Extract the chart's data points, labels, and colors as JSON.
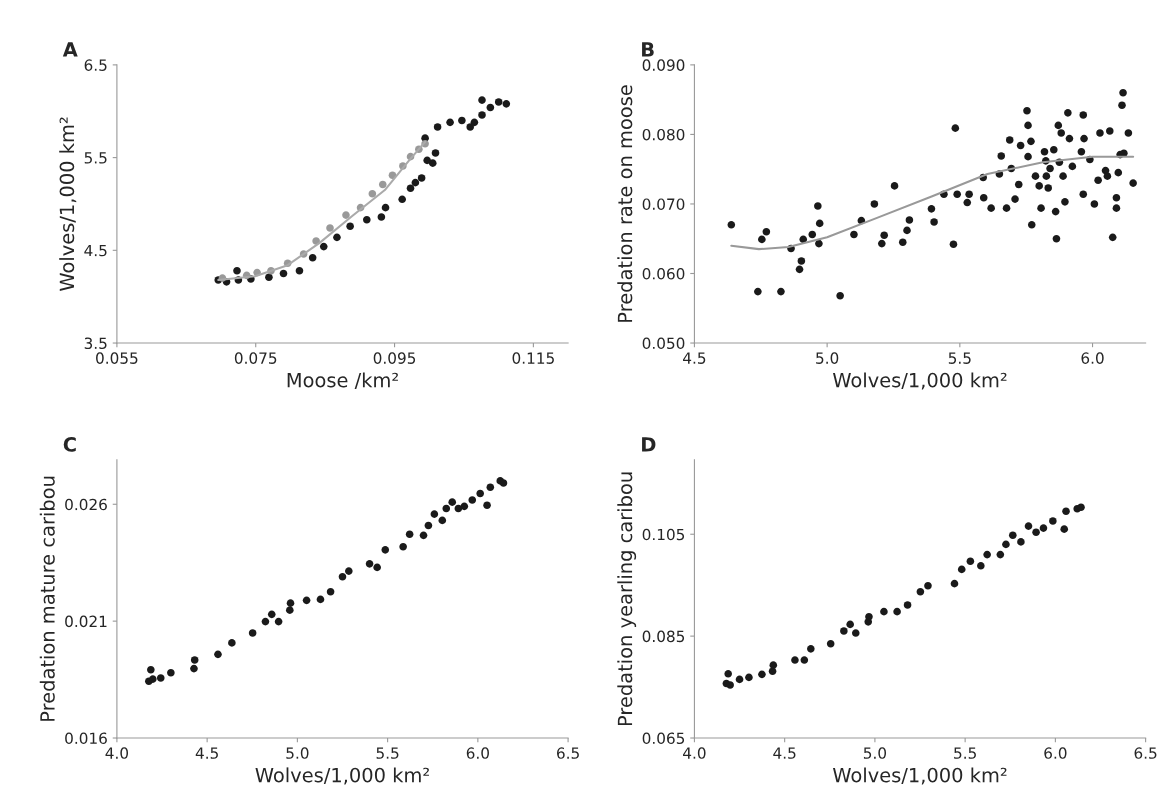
{
  "chart_data": [
    {
      "type": "scatter",
      "title": "A",
      "xlabel": "Moose /km²",
      "ylabel": "Wolves/1,000 km²",
      "xlim": [
        0.055,
        0.12
      ],
      "ylim": [
        3.5,
        6.5
      ],
      "xticks": [
        0.055,
        0.075,
        0.095,
        0.115
      ],
      "yticks": [
        3.5,
        4.5,
        5.5,
        6.5
      ],
      "grid": false,
      "marker": "circle",
      "series": [
        {
          "color": "#1a1a1a",
          "x": [
            0.0696,
            0.0708,
            0.0723,
            0.0725,
            0.0743,
            0.0769,
            0.079,
            0.0813,
            0.0832,
            0.0848,
            0.0867,
            0.0886,
            0.091,
            0.0931,
            0.0937,
            0.0961,
            0.0973,
            0.098,
            0.0989,
            0.0997,
            0.1005,
            0.1009,
            0.0994,
            0.1012,
            0.103,
            0.1047,
            0.1065,
            0.1059,
            0.1076,
            0.1088,
            0.1076,
            0.11,
            0.1111
          ],
          "values": [
            4.18,
            4.16,
            4.28,
            4.18,
            4.19,
            4.21,
            4.25,
            4.28,
            4.42,
            4.54,
            4.64,
            4.76,
            4.83,
            4.86,
            4.96,
            5.05,
            5.17,
            5.23,
            5.28,
            5.47,
            5.44,
            5.55,
            5.71,
            5.83,
            5.88,
            5.9,
            5.88,
            5.83,
            5.96,
            6.04,
            6.12,
            6.1,
            6.08
          ]
        },
        {
          "color": "#999999",
          "x": [
            0.0702,
            0.0737,
            0.0752,
            0.0772,
            0.0796,
            0.0819,
            0.0837,
            0.0857,
            0.088,
            0.0901,
            0.0918,
            0.0933,
            0.0947,
            0.0962,
            0.0973,
            0.0985,
            0.0994
          ],
          "values": [
            4.2,
            4.23,
            4.26,
            4.28,
            4.36,
            4.46,
            4.6,
            4.74,
            4.88,
            4.96,
            5.11,
            5.21,
            5.31,
            5.41,
            5.51,
            5.59,
            5.65
          ]
        },
        {
          "type": "line",
          "color": "#aaaaaa",
          "marker": "none",
          "x": [
            0.0696,
            0.0749,
            0.0796,
            0.0842,
            0.0889,
            0.0936,
            0.0971,
            0.0994
          ],
          "values": [
            4.18,
            4.22,
            4.34,
            4.58,
            4.87,
            5.15,
            5.47,
            5.67
          ]
        }
      ]
    },
    {
      "type": "scatter",
      "title": "B",
      "xlabel": "Wolves/1,000 km²",
      "ylabel": "Predation rate on moose",
      "xlim": [
        4.5,
        6.2
      ],
      "ylim": [
        0.05,
        0.09
      ],
      "xticks": [
        4.5,
        {
          "value": 5,
          "label": "5.0"
        },
        5.5,
        {
          "value": 6,
          "label": "6.0"
        }
      ],
      "yticks": [
        {
          "value": 0.05,
          "label": "0.050"
        },
        {
          "value": 0.06,
          "label": "0.060"
        },
        {
          "value": 0.07,
          "label": "0.070"
        },
        {
          "value": 0.08,
          "label": "0.080"
        },
        {
          "value": 0.09,
          "label": "0.090"
        }
      ],
      "grid": false,
      "marker": "circle",
      "series": [
        {
          "color": "#1a1a1a",
          "x": [
            4.639,
            4.754,
            4.771,
            4.739,
            4.826,
            4.864,
            4.91,
            4.903,
            4.896,
            4.944,
            4.965,
            4.972,
            4.969,
            5.049,
            5.101,
            5.129,
            5.178,
            5.206,
            5.215,
            5.254,
            5.285,
            5.301,
            5.31,
            5.393,
            5.403,
            5.44,
            5.476,
            5.483,
            5.49,
            5.528,
            5.535,
            5.588,
            5.59,
            5.618,
            5.656,
            5.649,
            5.676,
            5.688,
            5.694,
            5.708,
            5.722,
            5.729,
            5.753,
            5.757,
            5.757,
            5.771,
            5.768,
            5.785,
            5.799,
            5.806,
            5.819,
            5.824,
            5.826,
            5.833,
            5.84,
            5.854,
            5.861,
            5.864,
            5.871,
            5.875,
            5.882,
            5.889,
            5.896,
            5.907,
            5.913,
            5.924,
            5.958,
            5.965,
            5.968,
            5.965,
            5.99,
            6.007,
            6.021,
            6.028,
            6.049,
            6.056,
            6.065,
            6.076,
            6.09,
            6.09,
            6.097,
            6.104,
            6.111,
            6.115,
            6.135,
            6.153,
            6.118
          ],
          "values": [
            0.067,
            0.0649,
            0.066,
            0.0574,
            0.0574,
            0.0636,
            0.0649,
            0.0618,
            0.0606,
            0.0656,
            0.0697,
            0.0672,
            0.0643,
            0.0568,
            0.0656,
            0.0676,
            0.07,
            0.0643,
            0.0655,
            0.0726,
            0.0645,
            0.0662,
            0.0677,
            0.0693,
            0.0674,
            0.0714,
            0.0642,
            0.0809,
            0.0714,
            0.0702,
            0.0714,
            0.0738,
            0.0709,
            0.0694,
            0.0769,
            0.0743,
            0.0694,
            0.0792,
            0.0751,
            0.0707,
            0.0728,
            0.0784,
            0.0834,
            0.0813,
            0.0768,
            0.067,
            0.079,
            0.074,
            0.0726,
            0.0694,
            0.0775,
            0.0762,
            0.074,
            0.0723,
            0.0751,
            0.0778,
            0.0689,
            0.065,
            0.0813,
            0.076,
            0.0802,
            0.074,
            0.0703,
            0.0831,
            0.0794,
            0.0754,
            0.0775,
            0.0828,
            0.0794,
            0.0714,
            0.0764,
            0.07,
            0.0734,
            0.0802,
            0.0748,
            0.074,
            0.0805,
            0.0652,
            0.0709,
            0.0694,
            0.0745,
            0.0771,
            0.0842,
            0.086,
            0.0802,
            0.073,
            0.0773
          ]
        },
        {
          "type": "line",
          "color": "#999999",
          "marker": "none",
          "x": [
            4.639,
            4.743,
            4.854,
            5.0,
            5.188,
            5.396,
            5.604,
            5.813,
            6.0,
            6.153
          ],
          "values": [
            0.064,
            0.0635,
            0.0638,
            0.0652,
            0.068,
            0.0711,
            0.0743,
            0.076,
            0.0768,
            0.0768
          ]
        }
      ]
    },
    {
      "type": "scatter",
      "title": "C",
      "xlabel": "Wolves/1,000 km²",
      "ylabel": "Predation mature caribou",
      "xlim": [
        4.0,
        6.5
      ],
      "ylim": [
        0.016,
        0.0279
      ],
      "xticks": [
        {
          "value": 4,
          "label": "4.0"
        },
        4.5,
        {
          "value": 5,
          "label": "5.0"
        },
        5.5,
        {
          "value": 6,
          "label": "6.0"
        },
        6.5
      ],
      "yticks": [
        0.016,
        0.021,
        0.026
      ],
      "grid": false,
      "marker": "circle",
      "series": [
        {
          "color": "#1a1a1a",
          "x": [
            4.177,
            4.199,
            4.188,
            4.243,
            4.299,
            4.427,
            4.431,
            4.56,
            4.637,
            4.752,
            4.823,
            4.858,
            4.896,
            4.958,
            4.962,
            5.051,
            5.128,
            5.184,
            5.25,
            5.285,
            5.4,
            5.442,
            5.487,
            5.586,
            5.622,
            5.699,
            5.726,
            5.759,
            5.803,
            5.825,
            5.858,
            5.892,
            5.925,
            5.969,
            6.013,
            6.051,
            6.069,
            6.124,
            6.142
          ],
          "values": [
            0.01843,
            0.01852,
            0.01892,
            0.01857,
            0.01879,
            0.01897,
            0.01934,
            0.01958,
            0.02007,
            0.02049,
            0.02098,
            0.02129,
            0.02098,
            0.02147,
            0.02177,
            0.02189,
            0.02193,
            0.02226,
            0.0229,
            0.02314,
            0.02345,
            0.0233,
            0.02405,
            0.02418,
            0.02472,
            0.02467,
            0.02509,
            0.02558,
            0.02531,
            0.02582,
            0.02609,
            0.02582,
            0.02591,
            0.02618,
            0.02646,
            0.02596,
            0.02673,
            0.027,
            0.02691
          ]
        }
      ]
    },
    {
      "type": "scatter",
      "title": "D",
      "xlabel": "Wolves/1,000 km²",
      "ylabel": "Predation yearling caribou",
      "xlim": [
        4.0,
        6.5
      ],
      "ylim": [
        0.065,
        0.1196
      ],
      "xticks": [
        {
          "value": 4,
          "label": "4.0"
        },
        4.5,
        {
          "value": 5,
          "label": "5.0"
        },
        5.5,
        {
          "value": 6,
          "label": "6.0"
        },
        6.5
      ],
      "yticks": [
        0.065,
        0.085,
        0.105
      ],
      "grid": false,
      "marker": "circle",
      "series": [
        {
          "color": "#1a1a1a",
          "x": [
            4.177,
            4.198,
            4.187,
            4.25,
            4.302,
            4.374,
            4.433,
            4.437,
            4.557,
            4.609,
            4.645,
            4.755,
            4.828,
            4.863,
            4.894,
            4.963,
            4.967,
            5.05,
            5.123,
            5.181,
            5.252,
            5.294,
            5.441,
            5.481,
            5.529,
            5.587,
            5.622,
            5.695,
            5.726,
            5.764,
            5.809,
            5.851,
            5.893,
            5.934,
            5.986,
            6.049,
            6.059,
            6.121,
            6.142
          ],
          "values": [
            0.0757,
            0.0754,
            0.0776,
            0.0765,
            0.0769,
            0.0775,
            0.0781,
            0.0793,
            0.0803,
            0.0803,
            0.0825,
            0.0835,
            0.086,
            0.0873,
            0.0856,
            0.0878,
            0.0888,
            0.0898,
            0.0898,
            0.0911,
            0.0937,
            0.0949,
            0.0953,
            0.0981,
            0.0997,
            0.0988,
            0.101,
            0.101,
            0.103,
            0.1048,
            0.1035,
            0.1066,
            0.1054,
            0.1062,
            0.1076,
            0.106,
            0.1095,
            0.11,
            0.1103
          ]
        }
      ]
    }
  ]
}
